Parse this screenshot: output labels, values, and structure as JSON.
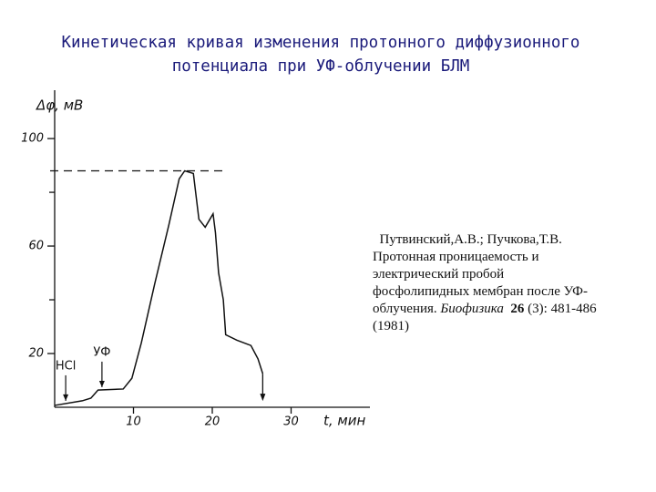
{
  "chart_data": {
    "type": "line",
    "title": [
      "Кинетическая кривая изменения протонного диффузионного",
      "потенциала при УФ-облучении БЛМ"
    ],
    "y_label": "Δφ, мВ",
    "x_label": "t, мин",
    "x": [
      0,
      3.5,
      4.6,
      5.5,
      8.7,
      9.8,
      11,
      12.7,
      14.5,
      15.8,
      16.5,
      17.6,
      18.3,
      19.1,
      19.7,
      20.1,
      20.4,
      20.8,
      21.4,
      21.7,
      23.1,
      24.9,
      25.8,
      26.4
    ],
    "series": [
      {
        "color": "#111111",
        "values": [
          0.7,
          2.4,
          3.4,
          6.4,
          6.8,
          10.8,
          24,
          46,
          68,
          85,
          88,
          87,
          70,
          67,
          70,
          72,
          65,
          50,
          40,
          27,
          25,
          23,
          18,
          12.5
        ]
      }
    ],
    "xlim": [
      0,
      40
    ],
    "xticks": [
      10,
      20,
      30
    ],
    "ylim": [
      0,
      118
    ],
    "yticks": [
      20,
      60,
      100
    ],
    "minor_yticks": [
      40,
      80
    ],
    "reference_value": 88,
    "annotations": [
      {
        "text": "НСl",
        "x": 1.4
      },
      {
        "text": "УФ",
        "x": 6
      }
    ]
  },
  "citation": {
    "authors": "Путвинский,А.В.; Пучкова,Т.В.",
    "title": "Протонная проницаемость и электрический пробой фосфолипидных мембран после УФ-облучения.",
    "journal": "Биофизика",
    "volume": "26",
    "issue": "(3):",
    "pages": "481-486",
    "year": "(1981)"
  }
}
